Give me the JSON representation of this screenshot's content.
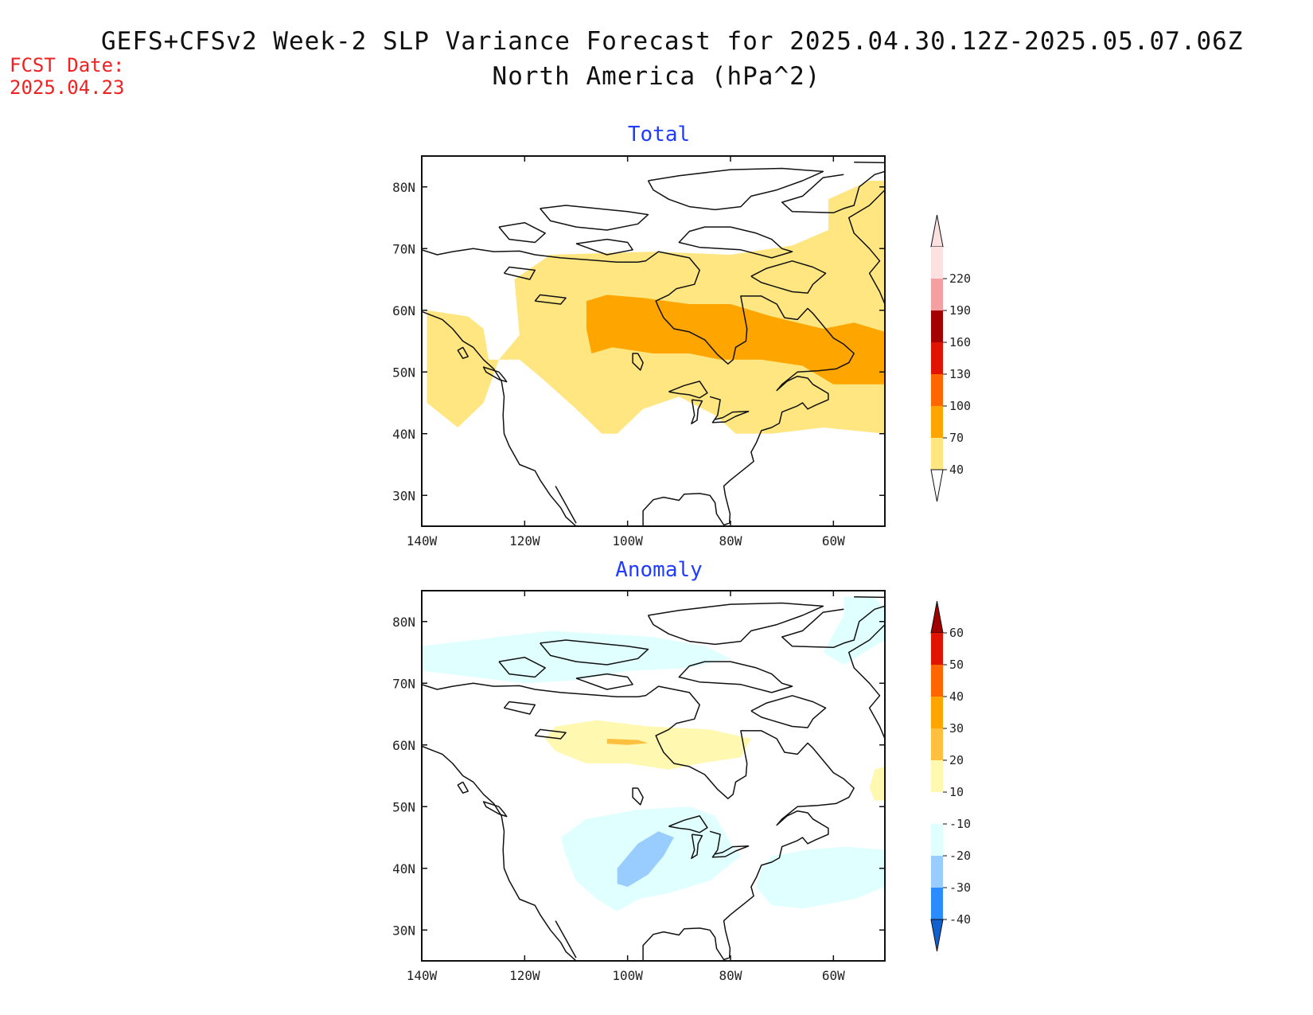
{
  "header": {
    "title_line1": "GEFS+CFSv2 Week-2 SLP Variance Forecast for 2025.04.30.12Z-2025.05.07.06Z",
    "title_line2": "North America (hPa^2)",
    "fcst_label": "FCST Date:",
    "fcst_date": "2025.04.23"
  },
  "colors": {
    "panel_title": "#1f3cff",
    "fcst": "#ee2222",
    "coast": "#111111"
  },
  "axes": {
    "lat_labels": [
      "80N",
      "70N",
      "60N",
      "50N",
      "40N",
      "30N"
    ],
    "lat_values": [
      80,
      70,
      60,
      50,
      40,
      30
    ],
    "lon_labels": [
      "140W",
      "120W",
      "100W",
      "80W",
      "60W"
    ],
    "lon_values": [
      -140,
      -120,
      -100,
      -80,
      -60
    ],
    "lat_range": [
      25,
      85
    ],
    "lon_range": [
      -140,
      -50
    ]
  },
  "panels": [
    {
      "id": "total",
      "title": "Total",
      "colorbar": {
        "labels": [
          "40",
          "70",
          "100",
          "130",
          "160",
          "190",
          "220"
        ],
        "colors": [
          "#ffe680",
          "#ffa500",
          "#ff6600",
          "#e01400",
          "#a50000",
          "#f5a0a0",
          "#fde0e0"
        ],
        "top_arrow_color": "#fde0e0",
        "bottom_arrow_color": "#ffffff"
      },
      "regions": [
        {
          "level": "40-70",
          "color": "#ffe680",
          "lonlat": [
            [
              -139,
              45
            ],
            [
              -133,
              41
            ],
            [
              -128,
              45
            ],
            [
              -125,
              52
            ],
            [
              -121,
              56
            ],
            [
              -122,
              65
            ],
            [
              -115,
              69
            ],
            [
              -95,
              69.5
            ],
            [
              -80,
              69
            ],
            [
              -68,
              70.5
            ],
            [
              -61,
              73
            ],
            [
              -61,
              78
            ],
            [
              -53,
              81
            ],
            [
              -50,
              81
            ],
            [
              -50,
              40
            ],
            [
              -62,
              41
            ],
            [
              -72,
              40
            ],
            [
              -79,
              40
            ],
            [
              -83,
              43
            ],
            [
              -90,
              46
            ],
            [
              -97,
              44
            ],
            [
              -102,
              40
            ],
            [
              -105,
              40
            ],
            [
              -110,
              44
            ],
            [
              -116,
              48.5
            ],
            [
              -121,
              52
            ],
            [
              -127,
              52
            ],
            [
              -128,
              57
            ],
            [
              -131,
              59
            ],
            [
              -139,
              60
            ]
          ]
        },
        {
          "level": "70-100",
          "color": "#ffa500",
          "lonlat": [
            [
              -108,
              61.5
            ],
            [
              -104,
              62.5
            ],
            [
              -97,
              62
            ],
            [
              -88,
              61
            ],
            [
              -80,
              61
            ],
            [
              -72,
              59
            ],
            [
              -62,
              57
            ],
            [
              -56,
              58
            ],
            [
              -50,
              56.5
            ],
            [
              -50,
              48
            ],
            [
              -60,
              48
            ],
            [
              -66,
              51
            ],
            [
              -74,
              52
            ],
            [
              -82,
              52
            ],
            [
              -88,
              53
            ],
            [
              -95,
              53
            ],
            [
              -103,
              54
            ],
            [
              -107,
              53
            ],
            [
              -108,
              57
            ]
          ]
        }
      ]
    },
    {
      "id": "anomaly",
      "title": "Anomaly",
      "colorbar": {
        "labels": [
          "60",
          "50",
          "40",
          "30",
          "20",
          "10",
          "-10",
          "-20",
          "-30",
          "-40"
        ],
        "colors": [
          "#b00000",
          "#e01400",
          "#ff6600",
          "#ffa500",
          "#ffc040",
          "#fff8b0",
          "#ffffff",
          "#e0ffff",
          "#99ccff",
          "#2a8cff",
          "#1060d0"
        ],
        "top_arrow_color": "#a00000",
        "bottom_arrow_color": "#1060d0"
      },
      "regions": [
        {
          "level": "-20 to -10",
          "color": "#e0ffff",
          "lonlat": [
            [
              -140,
              76
            ],
            [
              -125,
              77.5
            ],
            [
              -115,
              78.5
            ],
            [
              -105,
              78
            ],
            [
              -95,
              77.5
            ],
            [
              -85,
              76
            ],
            [
              -80,
              74
            ],
            [
              -88,
              72.5
            ],
            [
              -100,
              72
            ],
            [
              -110,
              70.5
            ],
            [
              -120,
              70
            ],
            [
              -130,
              71
            ],
            [
              -140,
              72
            ]
          ]
        },
        {
          "level": "-20 to -10",
          "color": "#e0ffff",
          "lonlat": [
            [
              -58,
              84
            ],
            [
              -52,
              84
            ],
            [
              -50,
              82
            ],
            [
              -50,
              77
            ],
            [
              -54,
              75
            ],
            [
              -58,
              73
            ],
            [
              -62,
              75
            ],
            [
              -60,
              78
            ],
            [
              -58,
              81
            ]
          ]
        },
        {
          "level": "-20 to -10",
          "color": "#e0ffff",
          "lonlat": [
            [
              -113,
              45
            ],
            [
              -108,
              48
            ],
            [
              -98,
              49.5
            ],
            [
              -88,
              50
            ],
            [
              -83,
              48.5
            ],
            [
              -80,
              44
            ],
            [
              -78,
              42
            ],
            [
              -84,
              38
            ],
            [
              -92,
              36
            ],
            [
              -98,
              35
            ],
            [
              -102,
              33
            ],
            [
              -106,
              35
            ],
            [
              -110,
              38
            ],
            [
              -112,
              42
            ]
          ]
        },
        {
          "level": "-20 to -10",
          "color": "#e0ffff",
          "lonlat": [
            [
              -72,
              42
            ],
            [
              -65,
              43
            ],
            [
              -58,
              43.5
            ],
            [
              -50,
              43
            ],
            [
              -50,
              37
            ],
            [
              -56,
              35
            ],
            [
              -66,
              33.5
            ],
            [
              -72,
              34
            ],
            [
              -75,
              37
            ],
            [
              -74,
              40
            ]
          ]
        },
        {
          "level": "-30 to -20",
          "color": "#99ccff",
          "lonlat": [
            [
              -102,
              40
            ],
            [
              -98,
              44
            ],
            [
              -94,
              46
            ],
            [
              -91,
              45
            ],
            [
              -93,
              42
            ],
            [
              -96,
              39
            ],
            [
              -100,
              37
            ],
            [
              -102,
              37.5
            ]
          ]
        },
        {
          "level": "10-20",
          "color": "#fff8b0",
          "lonlat": [
            [
              -114,
              63
            ],
            [
              -106,
              64
            ],
            [
              -96,
              63
            ],
            [
              -84,
              62.5
            ],
            [
              -76,
              61
            ],
            [
              -78,
              58
            ],
            [
              -86,
              57
            ],
            [
              -92,
              56
            ],
            [
              -100,
              57
            ],
            [
              -108,
              57
            ],
            [
              -114,
              59
            ],
            [
              -116,
              61
            ]
          ]
        },
        {
          "level": "10-20",
          "color": "#fff8b0",
          "lonlat": [
            [
              -52,
              56
            ],
            [
              -50,
              56.5
            ],
            [
              -50,
              51
            ],
            [
              -52,
              51
            ],
            [
              -53,
              53
            ]
          ]
        },
        {
          "level": "20-30",
          "color": "#ffc040",
          "lonlat": [
            [
              -104,
              61
            ],
            [
              -98,
              60.8
            ],
            [
              -96,
              60.3
            ],
            [
              -100,
              60
            ],
            [
              -104,
              60.2
            ]
          ]
        }
      ]
    }
  ]
}
